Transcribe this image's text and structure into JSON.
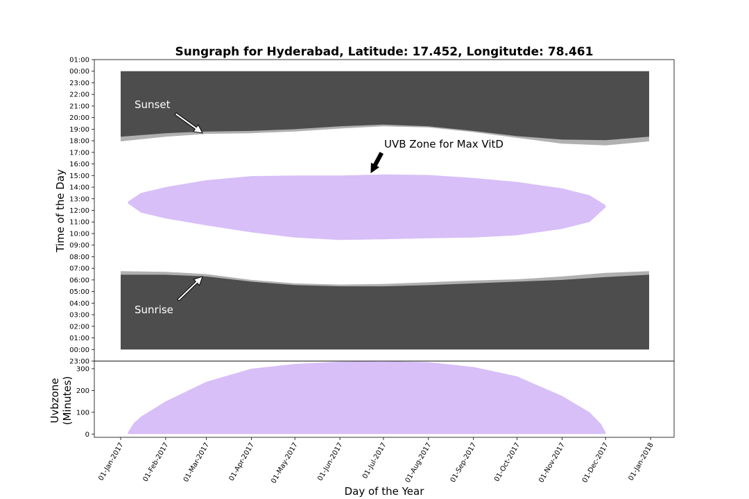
{
  "chart_data": [
    {
      "type": "area",
      "title": "Sungraph for Hyderabad, Latitude: 17.452, Longitutde: 78.461",
      "ylabel": "Time of the Day",
      "y_ticks": [
        "23:00",
        "00:00",
        "01:00",
        "02:00",
        "03:00",
        "04:00",
        "05:00",
        "06:00",
        "07:00",
        "08:00",
        "09:00",
        "10:00",
        "11:00",
        "12:00",
        "13:00",
        "14:00",
        "15:00",
        "16:00",
        "17:00",
        "18:00",
        "19:00",
        "20:00",
        "21:00",
        "22:00",
        "23:00",
        "00:00",
        "01:00"
      ],
      "y_range_hours": [
        -1,
        25
      ],
      "grid": false,
      "colors": {
        "night": "#4d4d4d",
        "twilight": "#b0b0b0",
        "uvb": "#d8bff8"
      },
      "x_dates": [
        "2017-01-01",
        "2017-02-01",
        "2017-03-01",
        "2017-04-01",
        "2017-05-01",
        "2017-06-01",
        "2017-07-01",
        "2017-08-01",
        "2017-09-01",
        "2017-10-01",
        "2017-11-01",
        "2017-12-01",
        "2017-12-31"
      ],
      "series": [
        {
          "key": "sunset",
          "values_hours": [
            17.95,
            18.35,
            18.6,
            18.65,
            18.8,
            19.05,
            19.25,
            19.15,
            18.75,
            18.25,
            17.75,
            17.6,
            17.95
          ]
        },
        {
          "key": "dusk",
          "values_hours": [
            18.35,
            18.65,
            18.8,
            18.85,
            19.0,
            19.25,
            19.4,
            19.25,
            18.85,
            18.4,
            18.1,
            18.05,
            18.35
          ]
        },
        {
          "key": "sunrise",
          "values_hours": [
            6.75,
            6.7,
            6.5,
            6.0,
            5.7,
            5.6,
            5.65,
            5.8,
            5.95,
            6.05,
            6.3,
            6.6,
            6.75
          ]
        },
        {
          "key": "dawn",
          "values_hours": [
            6.45,
            6.45,
            6.3,
            5.85,
            5.55,
            5.45,
            5.45,
            5.55,
            5.7,
            5.85,
            6.0,
            6.25,
            6.45
          ]
        },
        {
          "key": "uvb_start",
          "x_dates": [
            "2017-01-06",
            "2017-01-15",
            "2017-02-01",
            "2017-03-01",
            "2017-04-01",
            "2017-05-01",
            "2017-06-01",
            "2017-07-01",
            "2017-08-01",
            "2017-09-01",
            "2017-10-01",
            "2017-11-01",
            "2017-11-20",
            "2017-12-01"
          ],
          "values_hours": [
            12.6,
            11.8,
            11.3,
            10.7,
            10.1,
            9.65,
            9.45,
            9.5,
            9.6,
            9.65,
            9.85,
            10.4,
            11.0,
            12.25
          ]
        },
        {
          "key": "uvb_end",
          "x_dates": [
            "2017-01-06",
            "2017-01-15",
            "2017-02-01",
            "2017-03-01",
            "2017-04-01",
            "2017-05-01",
            "2017-06-01",
            "2017-07-01",
            "2017-08-01",
            "2017-09-01",
            "2017-10-01",
            "2017-11-01",
            "2017-11-20",
            "2017-12-01"
          ],
          "values_hours": [
            12.75,
            13.5,
            14.0,
            14.6,
            14.95,
            15.0,
            15.0,
            15.1,
            15.05,
            14.8,
            14.45,
            13.9,
            13.3,
            12.45
          ]
        }
      ],
      "annotations": [
        {
          "text": "Sunset",
          "color": "#ffffff"
        },
        {
          "text": "Sunrise",
          "color": "#ffffff"
        },
        {
          "text": "UVB Zone for Max VitD",
          "color": "#000000"
        }
      ]
    },
    {
      "type": "area",
      "xlabel": "Day of the Year",
      "ylabel_line1": "Uvbzone",
      "ylabel_line2": "(Minutes)",
      "y_ticks": [
        "0",
        "100",
        "200",
        "300"
      ],
      "ylim": [
        -15,
        335
      ],
      "x_ticks": [
        "01-Jan-2017",
        "01-Feb-2017",
        "01-Mar-2017",
        "01-Apr-2017",
        "01-May-2017",
        "01-Jun-2017",
        "01-Jul-2017",
        "01-Aug-2017",
        "01-Sep-2017",
        "01-Oct-2017",
        "01-Nov-2017",
        "01-Dec-2017",
        "01-Jan-2018"
      ],
      "color": "#d8bff8",
      "x_dates": [
        "2017-01-06",
        "2017-01-10",
        "2017-01-15",
        "2017-02-01",
        "2017-03-01",
        "2017-04-01",
        "2017-05-01",
        "2017-06-01",
        "2017-07-01",
        "2017-08-01",
        "2017-09-01",
        "2017-10-01",
        "2017-11-01",
        "2017-11-20",
        "2017-11-28",
        "2017-12-01"
      ],
      "values": [
        8,
        50,
        80,
        150,
        240,
        300,
        322,
        332,
        335,
        330,
        308,
        265,
        175,
        100,
        45,
        8
      ]
    }
  ]
}
